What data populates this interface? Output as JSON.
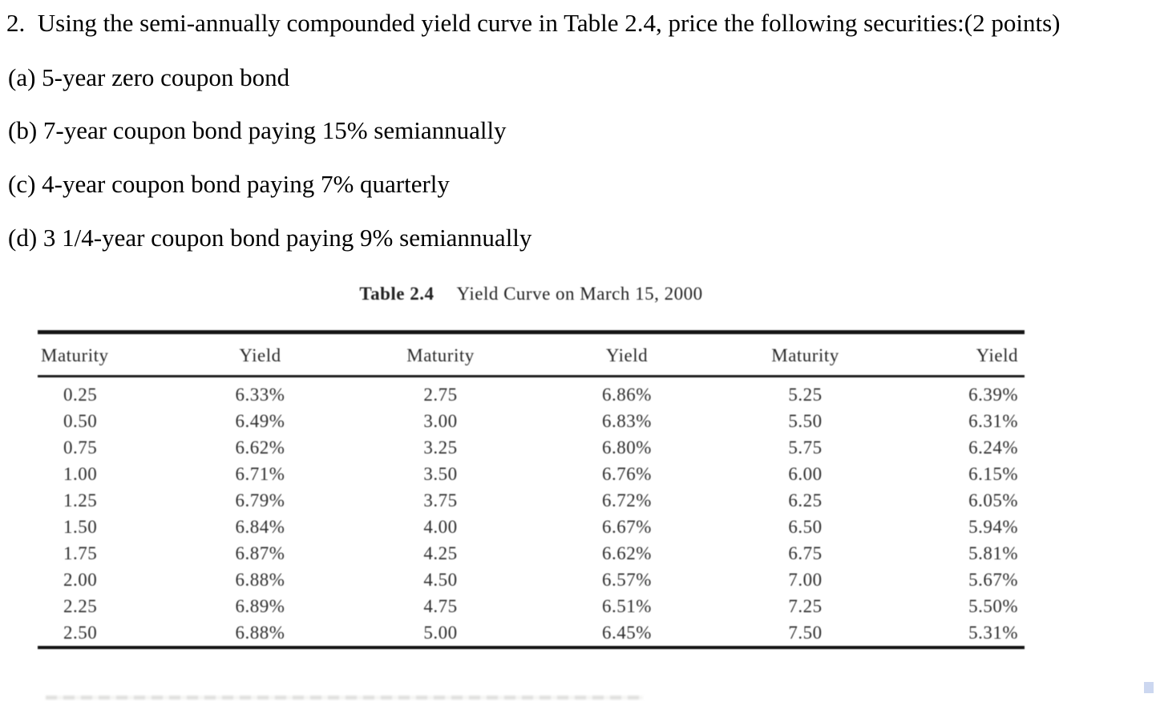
{
  "question": {
    "text": "2.  Using the semi-annually compounded yield curve in Table 2.4, price the following securities:(2 points)"
  },
  "items": [
    "(a) 5-year zero coupon bond",
    "(b) 7-year coupon bond paying 15% semiannually",
    "(c) 4-year coupon bond paying 7% quarterly",
    "(d) 3 1/4-year coupon bond paying 9% semiannually"
  ],
  "table": {
    "caption_label": "Table 2.4",
    "caption_title": "Yield Curve on March 15, 2000",
    "columns": [
      "Maturity",
      "Yield",
      "Maturity",
      "Yield",
      "Maturity",
      "Yield"
    ],
    "rows": [
      [
        "0.25",
        "6.33%",
        "2.75",
        "6.86%",
        "5.25",
        "6.39%"
      ],
      [
        "0.50",
        "6.49%",
        "3.00",
        "6.83%",
        "5.50",
        "6.31%"
      ],
      [
        "0.75",
        "6.62%",
        "3.25",
        "6.80%",
        "5.75",
        "6.24%"
      ],
      [
        "1.00",
        "6.71%",
        "3.50",
        "6.76%",
        "6.00",
        "6.15%"
      ],
      [
        "1.25",
        "6.79%",
        "3.75",
        "6.72%",
        "6.25",
        "6.05%"
      ],
      [
        "1.50",
        "6.84%",
        "4.00",
        "6.67%",
        "6.50",
        "5.94%"
      ],
      [
        "1.75",
        "6.87%",
        "4.25",
        "6.62%",
        "6.75",
        "5.81%"
      ],
      [
        "2.00",
        "6.88%",
        "4.50",
        "6.57%",
        "7.00",
        "5.67%"
      ],
      [
        "2.25",
        "6.89%",
        "4.75",
        "6.51%",
        "7.25",
        "5.50%"
      ],
      [
        "2.50",
        "6.88%",
        "5.00",
        "6.45%",
        "7.50",
        "5.31%"
      ]
    ]
  }
}
